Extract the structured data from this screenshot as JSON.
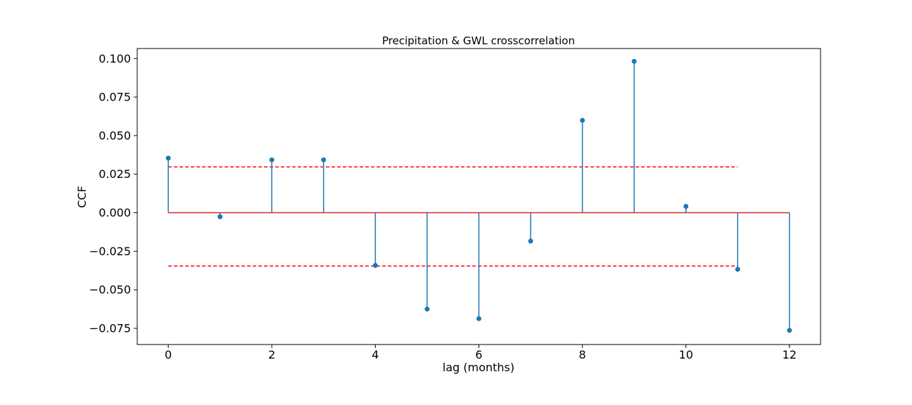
{
  "chart_data": {
    "type": "stem",
    "title": "Precipitation & GWL crosscorrelation",
    "xlabel": "lag (months)",
    "ylabel": "CCF",
    "x": [
      0,
      1,
      2,
      3,
      4,
      5,
      6,
      7,
      8,
      9,
      10,
      11,
      12
    ],
    "values": [
      0.0354,
      -0.0026,
      0.0343,
      0.0343,
      -0.0342,
      -0.0625,
      -0.0687,
      -0.0184,
      0.0599,
      0.0982,
      0.0041,
      -0.0367,
      -0.0763
    ],
    "xlim": [
      -0.6,
      12.6
    ],
    "ylim": [
      -0.0855,
      0.1065
    ],
    "xticks": [
      0,
      2,
      4,
      6,
      8,
      10,
      12
    ],
    "xtick_labels": [
      "0",
      "2",
      "4",
      "6",
      "8",
      "10",
      "12"
    ],
    "yticks": [
      -0.075,
      -0.05,
      -0.025,
      0,
      0.025,
      0.05,
      0.075,
      0.1
    ],
    "ytick_labels": [
      "−0.075",
      "−0.050",
      "−0.025",
      "0.000",
      "0.025",
      "0.050",
      "0.075",
      "0.100"
    ],
    "baseline": {
      "y": 0,
      "x_range": [
        0,
        12
      ],
      "color": "#d62728"
    },
    "confidence_bounds": {
      "upper": 0.0297,
      "lower": -0.0346,
      "x_range": [
        0,
        11
      ],
      "color": "#ff0000",
      "style": "dashed"
    },
    "stem_color": "#1f77b4",
    "grid": false,
    "legend": "none"
  }
}
